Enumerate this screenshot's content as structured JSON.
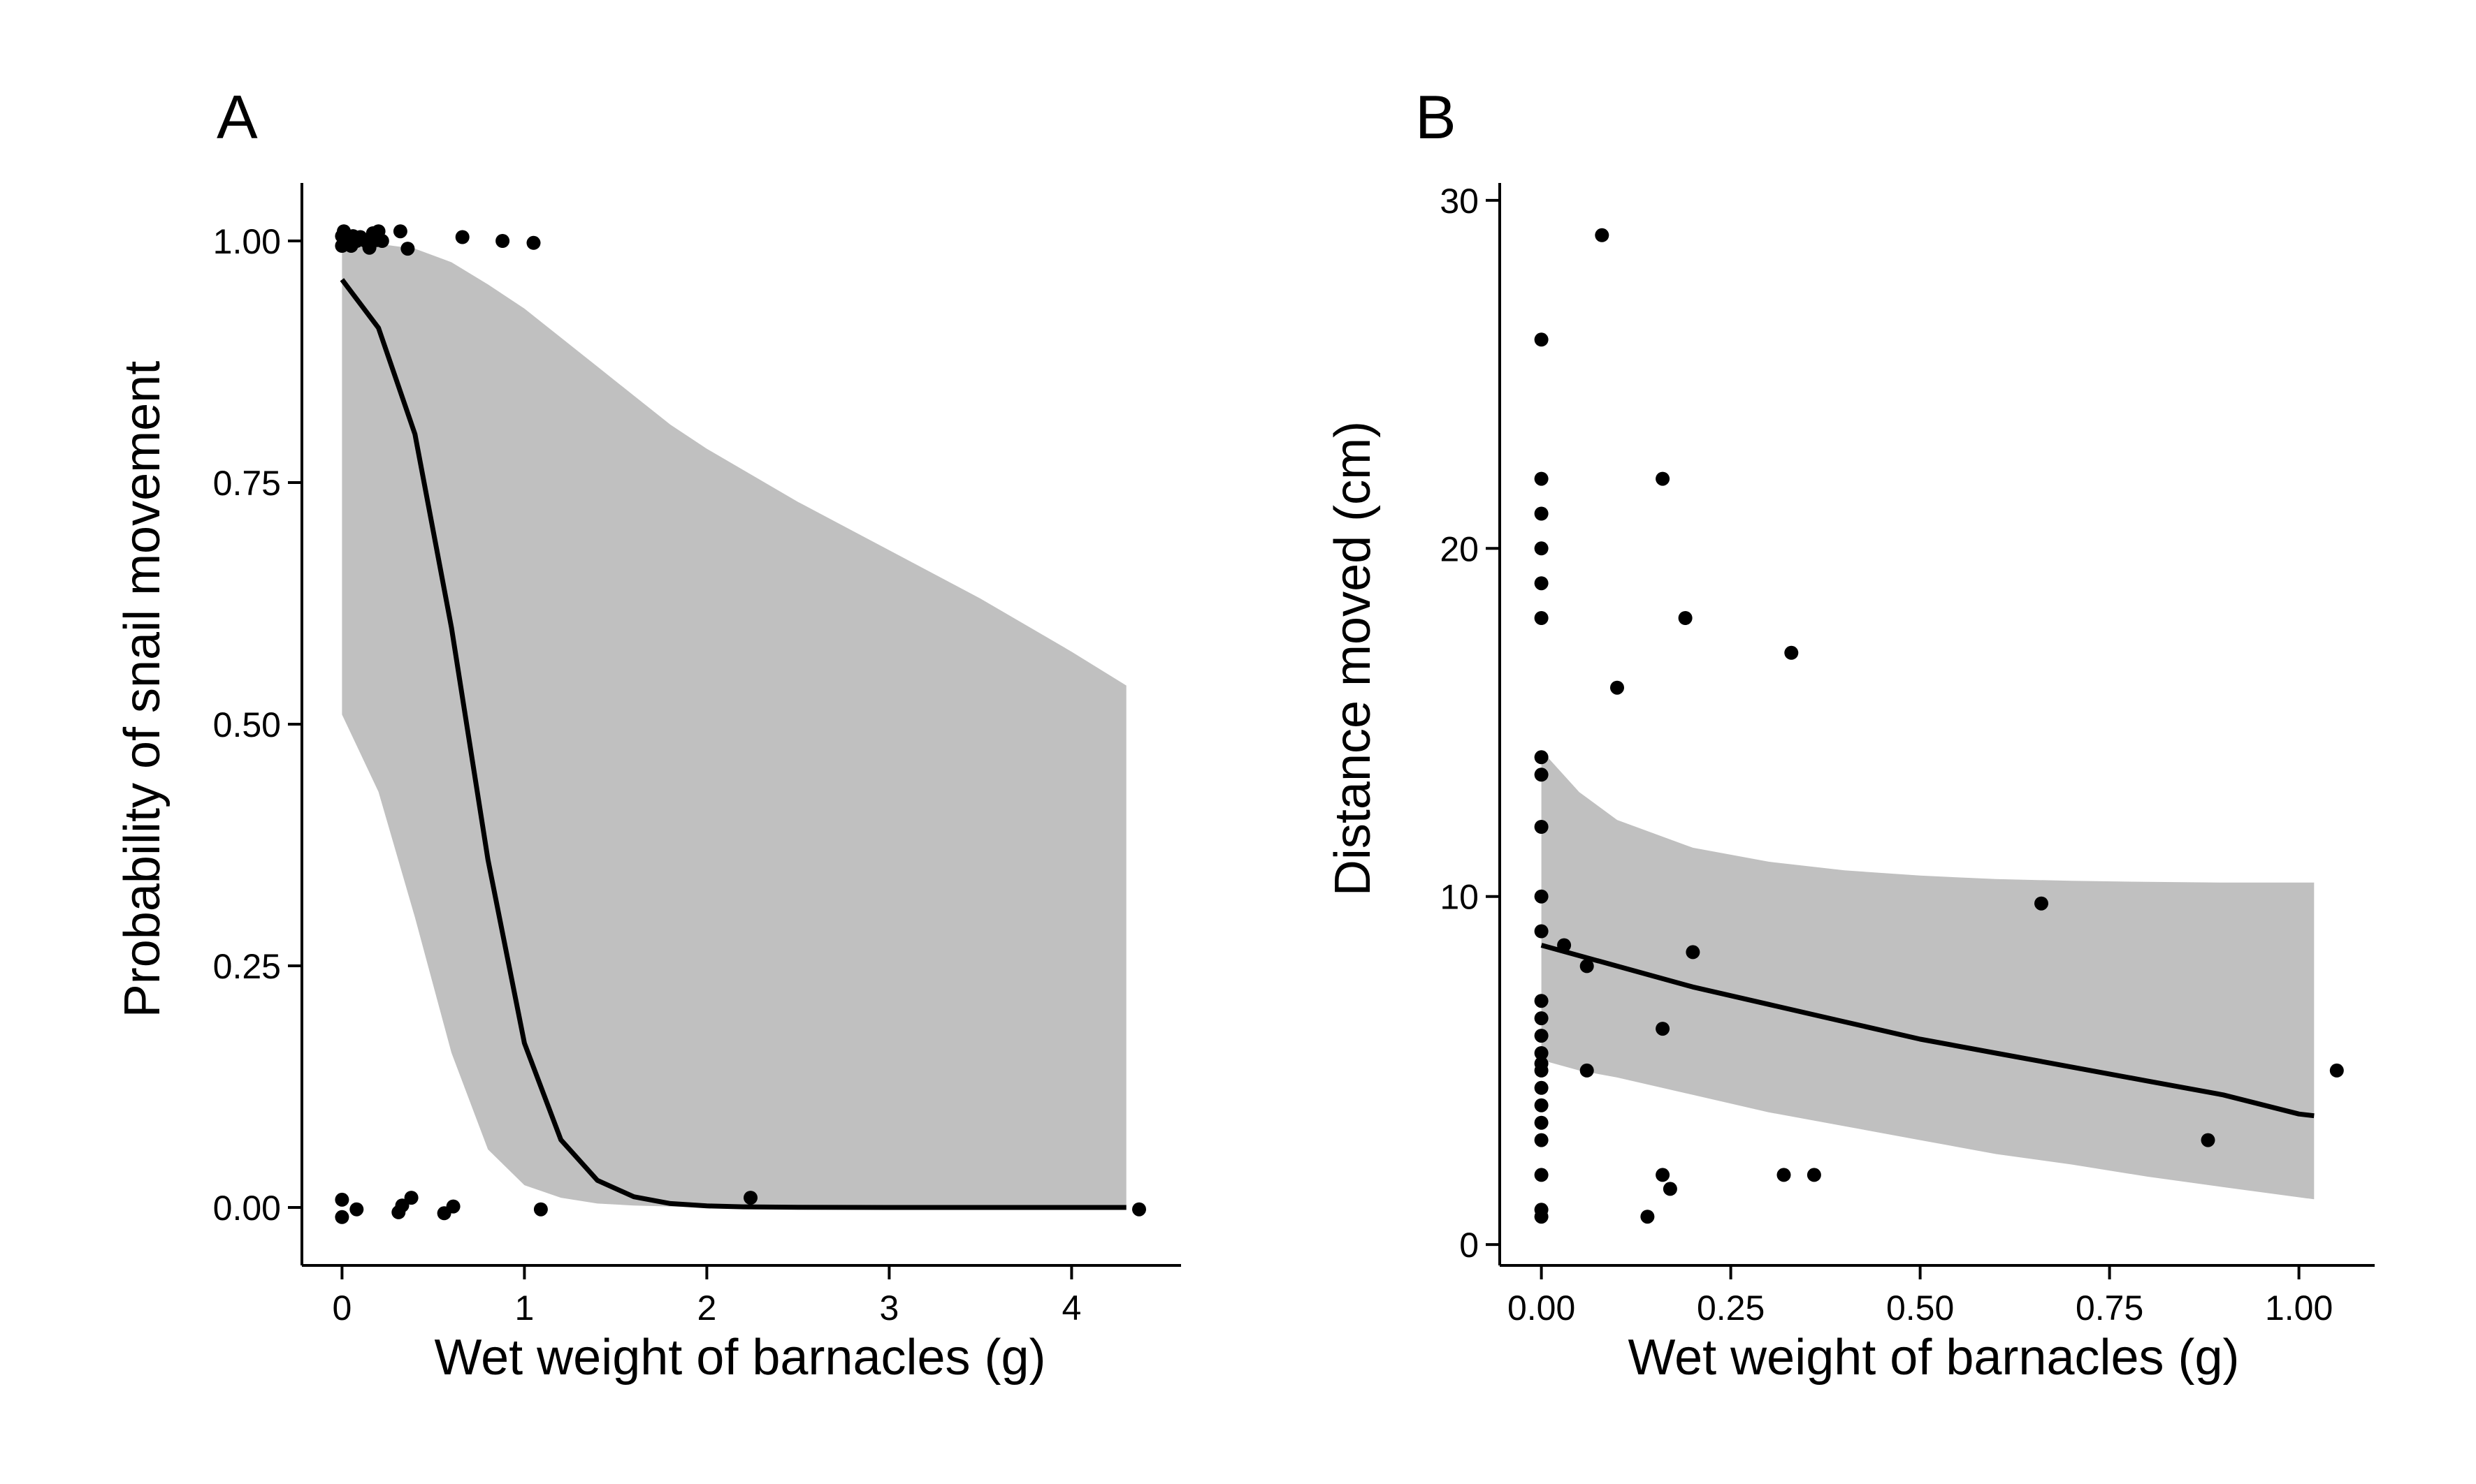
{
  "chart_data": [
    {
      "type": "scatter",
      "panel_label": "A",
      "title": "",
      "xlabel": "Wet weight of barnacles (g)",
      "ylabel": "Probability of snail movement",
      "xlim": [
        -0.22,
        4.6
      ],
      "ylim": [
        -0.06,
        1.06
      ],
      "xticks": [
        0,
        1,
        2,
        3,
        4
      ],
      "xtick_labels": [
        "0",
        "1",
        "2",
        "3",
        "4"
      ],
      "yticks": [
        0,
        0.25,
        0.5,
        0.75,
        1
      ],
      "ytick_labels": [
        "0.00",
        "0.25",
        "0.50",
        "0.75",
        "1.00"
      ],
      "grid": false,
      "colors": {
        "points": "#000000",
        "fit_line": "#000000",
        "confidence_band": "#c0c0c0"
      },
      "points": [
        [
          0.0,
          1.005
        ],
        [
          0.0,
          0.995
        ],
        [
          0.01,
          1.01
        ],
        [
          0.02,
          0.998
        ],
        [
          0.03,
          1.003
        ],
        [
          0.05,
          0.995
        ],
        [
          0.06,
          1.005
        ],
        [
          0.08,
          1.0
        ],
        [
          0.1,
          1.004
        ],
        [
          0.13,
          1.0
        ],
        [
          0.15,
          0.993
        ],
        [
          0.17,
          1.008
        ],
        [
          0.19,
          1.001
        ],
        [
          0.2,
          1.01
        ],
        [
          0.22,
          1.0
        ],
        [
          0.32,
          1.01
        ],
        [
          0.36,
          0.992
        ],
        [
          0.66,
          1.004
        ],
        [
          0.88,
          1.0
        ],
        [
          1.05,
          0.998
        ],
        [
          0.0,
          0.008
        ],
        [
          0.0,
          -0.01
        ],
        [
          0.08,
          -0.002
        ],
        [
          0.31,
          -0.005
        ],
        [
          0.33,
          0.002
        ],
        [
          0.38,
          0.01
        ],
        [
          0.56,
          -0.006
        ],
        [
          0.61,
          0.001
        ],
        [
          1.09,
          -0.002
        ],
        [
          2.24,
          0.01
        ],
        [
          4.37,
          -0.002
        ]
      ],
      "fit": {
        "x": [
          0,
          0.2,
          0.4,
          0.6,
          0.8,
          1.0,
          1.2,
          1.4,
          1.6,
          1.8,
          2.0,
          2.2,
          2.5,
          3.0,
          3.5,
          4.0,
          4.3
        ],
        "y": [
          0.96,
          0.91,
          0.8,
          0.6,
          0.36,
          0.17,
          0.07,
          0.028,
          0.011,
          0.004,
          0.0016,
          0.0006,
          0.0002,
          0,
          0,
          0,
          0
        ]
      },
      "ci": {
        "x": [
          0,
          0.2,
          0.4,
          0.6,
          0.8,
          1.0,
          1.2,
          1.4,
          1.6,
          1.8,
          2.0,
          2.5,
          3.0,
          3.5,
          4.0,
          4.3
        ],
        "lower": [
          0.51,
          0.43,
          0.3,
          0.16,
          0.06,
          0.023,
          0.01,
          0.004,
          0.002,
          0.001,
          0,
          0,
          0,
          0,
          0,
          0
        ],
        "upper": [
          0.998,
          0.997,
          0.992,
          0.978,
          0.955,
          0.93,
          0.9,
          0.87,
          0.84,
          0.81,
          0.785,
          0.73,
          0.68,
          0.63,
          0.575,
          0.54
        ]
      }
    },
    {
      "type": "scatter",
      "panel_label": "B",
      "title": "",
      "xlabel": "Wet weight of barnacles (g)",
      "ylabel": "Distance moved (cm)",
      "xlim": [
        -0.055,
        1.1
      ],
      "ylim": [
        -0.6,
        30.5
      ],
      "xticks": [
        0,
        0.25,
        0.5,
        0.75,
        1
      ],
      "xtick_labels": [
        "0.00",
        "0.25",
        "0.50",
        "0.75",
        "1.00"
      ],
      "yticks": [
        0,
        10,
        20,
        30
      ],
      "ytick_labels": [
        "0",
        "10",
        "20",
        "30"
      ],
      "grid": false,
      "colors": {
        "points": "#000000",
        "fit_line": "#000000",
        "confidence_band": "#c0c0c0"
      },
      "points": [
        [
          0,
          26
        ],
        [
          0,
          22
        ],
        [
          0,
          21
        ],
        [
          0,
          20
        ],
        [
          0,
          19
        ],
        [
          0,
          18
        ],
        [
          0,
          14
        ],
        [
          0,
          13.5
        ],
        [
          0,
          12
        ],
        [
          0,
          10
        ],
        [
          0,
          9
        ],
        [
          0,
          7
        ],
        [
          0,
          6.5
        ],
        [
          0,
          6
        ],
        [
          0,
          5.5
        ],
        [
          0,
          5.2
        ],
        [
          0,
          5
        ],
        [
          0,
          4.5
        ],
        [
          0,
          4
        ],
        [
          0,
          3.5
        ],
        [
          0,
          3
        ],
        [
          0,
          2
        ],
        [
          0,
          1
        ],
        [
          0,
          0.8
        ],
        [
          0.03,
          8.6
        ],
        [
          0.06,
          8
        ],
        [
          0.06,
          5
        ],
        [
          0.08,
          29
        ],
        [
          0.1,
          16
        ],
        [
          0.14,
          0.8
        ],
        [
          0.16,
          22
        ],
        [
          0.16,
          6.2
        ],
        [
          0.16,
          2
        ],
        [
          0.17,
          1.6
        ],
        [
          0.19,
          18
        ],
        [
          0.2,
          8.4
        ],
        [
          0.32,
          2
        ],
        [
          0.33,
          17
        ],
        [
          0.36,
          2
        ],
        [
          0.66,
          9.8
        ],
        [
          0.88,
          3
        ],
        [
          1.05,
          5
        ]
      ],
      "fit": {
        "x": [
          0,
          0.1,
          0.2,
          0.3,
          0.4,
          0.5,
          0.6,
          0.7,
          0.8,
          0.9,
          1.0,
          1.02
        ],
        "y": [
          8.6,
          8.0,
          7.4,
          6.9,
          6.4,
          5.9,
          5.5,
          5.1,
          4.7,
          4.3,
          3.75,
          3.7
        ]
      },
      "ci": {
        "x": [
          0,
          0.05,
          0.1,
          0.2,
          0.3,
          0.4,
          0.5,
          0.6,
          0.7,
          0.8,
          0.9,
          1.02
        ],
        "lower": [
          5.3,
          5.0,
          4.8,
          4.3,
          3.8,
          3.4,
          3.0,
          2.6,
          2.3,
          1.95,
          1.65,
          1.3
        ],
        "upper": [
          14.2,
          13.0,
          12.2,
          11.4,
          11.0,
          10.75,
          10.6,
          10.5,
          10.45,
          10.42,
          10.4,
          10.4
        ]
      }
    }
  ]
}
